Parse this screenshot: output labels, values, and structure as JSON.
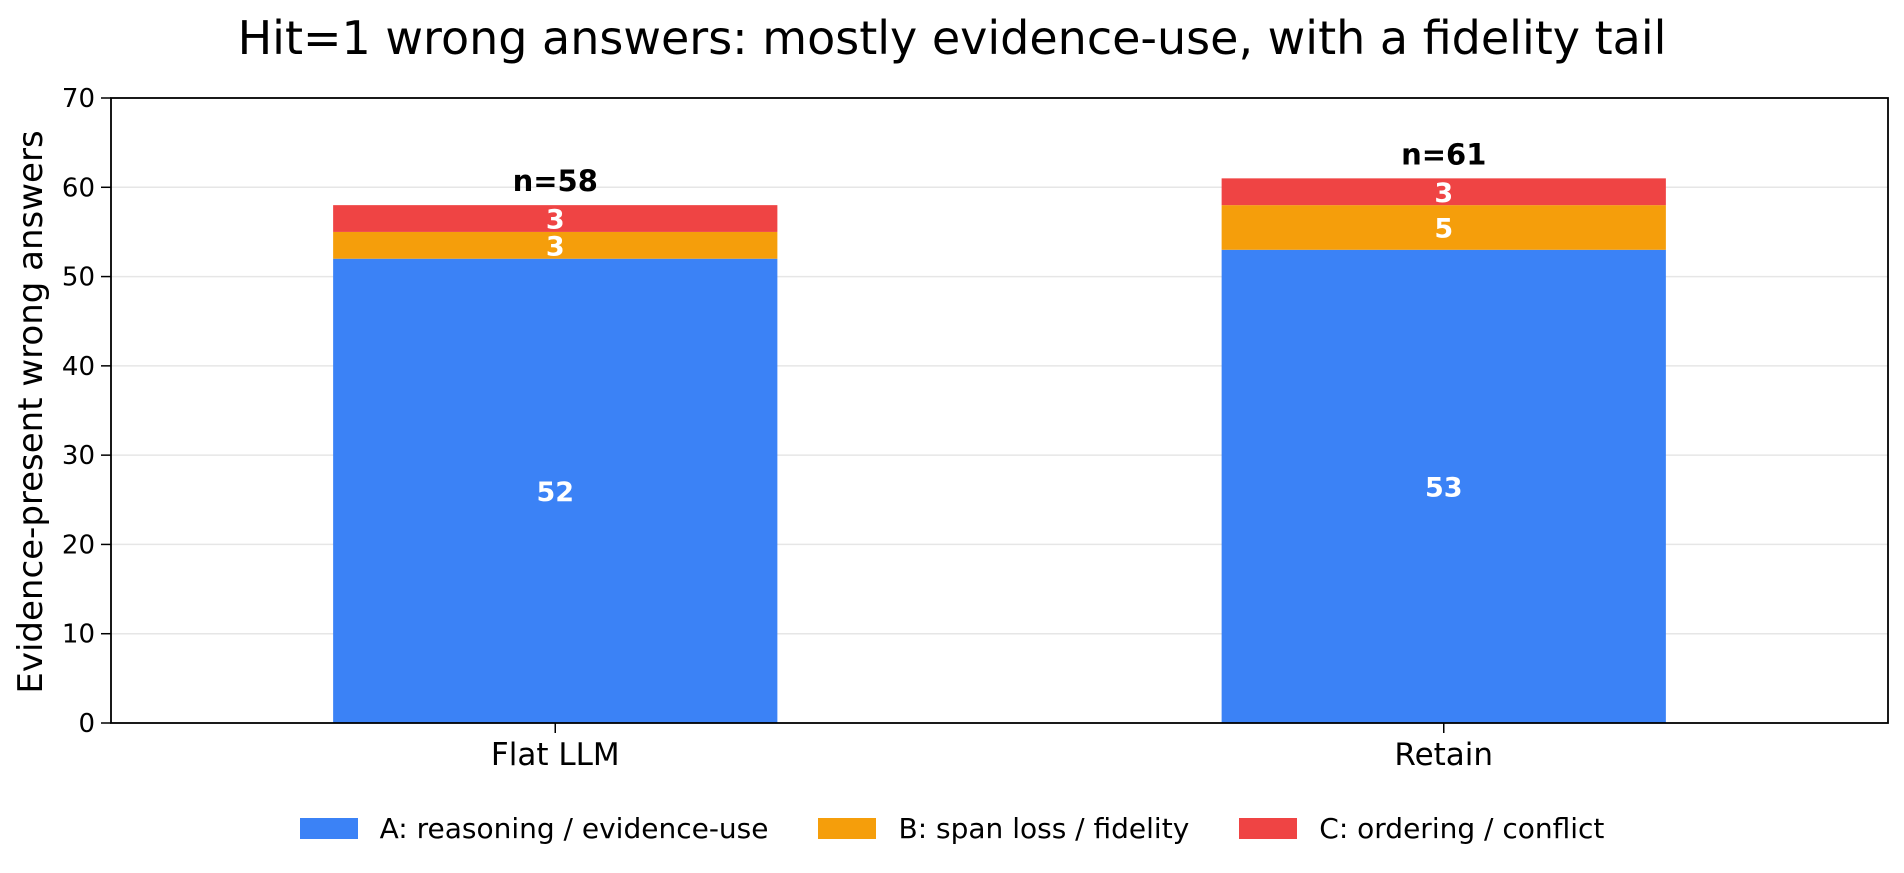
{
  "chart_data": {
    "type": "bar",
    "stacked": true,
    "title": "Hit=1 wrong answers: mostly evidence-use, with a fidelity tail",
    "xlabel": "",
    "ylabel": "Evidence-present wrong answers",
    "ylim": [
      0,
      70
    ],
    "yticks": [
      "0",
      "10",
      "20",
      "30",
      "40",
      "50",
      "60",
      "70"
    ],
    "grid": "horizontal",
    "legend_position": "bottom",
    "categories": [
      "Flat LLM",
      "Retain"
    ],
    "series": [
      {
        "name": "A: reasoning / evidence-use",
        "color": "#3b82f6",
        "values": [
          52,
          53
        ],
        "labels": [
          "52",
          "53"
        ]
      },
      {
        "name": "B: span loss / fidelity",
        "color": "#f59e0b",
        "values": [
          3,
          5
        ],
        "labels": [
          "3",
          "5"
        ]
      },
      {
        "name": "C: ordering / conflict",
        "color": "#ef4444",
        "values": [
          3,
          3
        ],
        "labels": [
          "3",
          "3"
        ]
      }
    ],
    "totals": [
      58,
      61
    ],
    "total_labels": [
      "n=58",
      "n=61"
    ]
  }
}
